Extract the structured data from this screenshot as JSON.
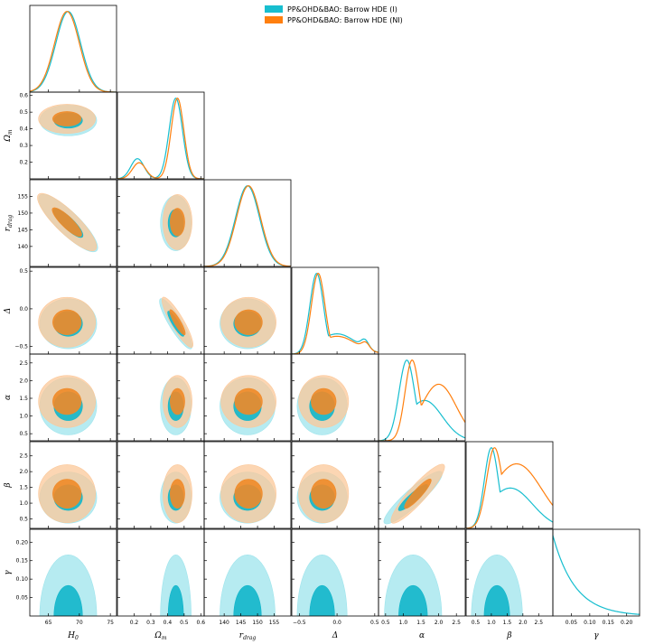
{
  "chart_data": {
    "type": "corner",
    "title": "",
    "parameters": [
      {
        "key": "H0",
        "label": "H",
        "sub": "0",
        "range": [
          62,
          76
        ],
        "ticks": [
          65,
          70,
          75
        ],
        "tick_labels": [
          "65",
          "70",
          "75"
        ]
      },
      {
        "key": "Om",
        "label": "Ω",
        "sub": "m",
        "range": [
          0.1,
          0.62
        ],
        "ticks": [
          0.2,
          0.3,
          0.4,
          0.5,
          0.6
        ],
        "tick_labels": [
          "0.2",
          "0.3",
          "0.4",
          "0.5",
          "0.6"
        ]
      },
      {
        "key": "rdrag",
        "label": "r",
        "sub": "drag",
        "range": [
          134,
          160
        ],
        "ticks": [
          140,
          145,
          150,
          155
        ],
        "tick_labels": [
          "140",
          "145",
          "150",
          "155"
        ]
      },
      {
        "key": "Delta",
        "label": "Δ",
        "sub": "",
        "range": [
          -0.6,
          0.55
        ],
        "ticks": [
          -0.5,
          0.0,
          0.5
        ],
        "tick_labels": [
          "−0.5",
          "0.0",
          "0.5"
        ]
      },
      {
        "key": "alpha",
        "label": "α",
        "sub": "",
        "range": [
          0.3,
          2.75
        ],
        "ticks": [
          0.5,
          1.0,
          1.5,
          2.0,
          2.5
        ],
        "tick_labels": [
          "0.5",
          "1.0",
          "1.5",
          "2.0",
          "2.5"
        ]
      },
      {
        "key": "beta",
        "label": "β",
        "sub": "",
        "range": [
          0.2,
          2.95
        ],
        "ticks": [
          0.5,
          1.0,
          1.5,
          2.0,
          2.5
        ],
        "tick_labels": [
          "0.5",
          "1.0",
          "1.5",
          "2.0",
          "2.5"
        ]
      },
      {
        "key": "gamma",
        "label": "γ",
        "sub": "",
        "range": [
          0.0,
          0.235
        ],
        "ticks": [
          0.05,
          0.1,
          0.15,
          0.2
        ],
        "tick_labels": [
          "0.05",
          "0.10",
          "0.15",
          "0.20"
        ]
      }
    ],
    "y_axis_ticks": {
      "Om": {
        "ticks": [
          0.2,
          0.3,
          0.4,
          0.5,
          0.6
        ],
        "tick_labels": [
          "0.2",
          "0.3",
          "0.4",
          "0.5",
          "0.6"
        ]
      },
      "rdrag": {
        "ticks": [
          140,
          145,
          150,
          155
        ],
        "tick_labels": [
          "140",
          "145",
          "150",
          "155"
        ]
      },
      "Delta": {
        "ticks": [
          -0.5,
          0.0,
          0.5
        ],
        "tick_labels": [
          "−0.5",
          "0.0",
          "0.5"
        ]
      },
      "alpha": {
        "ticks": [
          0.5,
          1.0,
          1.5,
          2.0,
          2.5
        ],
        "tick_labels": [
          "0.5",
          "1.0",
          "1.5",
          "2.0",
          "2.5"
        ]
      },
      "beta": {
        "ticks": [
          0.5,
          1.0,
          1.5,
          2.0,
          2.5
        ],
        "tick_labels": [
          "0.5",
          "1.0",
          "1.5",
          "2.0",
          "2.5"
        ]
      },
      "gamma": {
        "ticks": [
          0.05,
          0.1,
          0.15,
          0.2
        ],
        "tick_labels": [
          "0.05",
          "0.10",
          "0.15",
          "0.20"
        ]
      }
    },
    "legend_position": "top-center",
    "series": [
      {
        "name": "PP&OHD&BAO: Barrow HDE (I)",
        "color": "#17becf",
        "color_inner": "#12b6ca",
        "color_outer": "#9ee4ec",
        "params": [
          "H0",
          "Om",
          "rdrag",
          "Delta",
          "alpha",
          "beta",
          "gamma"
        ],
        "marginals": {
          "H0": {
            "mean": 68.2,
            "sigma": 2.0
          },
          "Om": {
            "mean": 0.45,
            "sigma": 0.04,
            "bump": [
              0.22,
              0.04,
              0.25
            ]
          },
          "rdrag": {
            "mean": 147.0,
            "sigma": 3.6
          },
          "Delta": {
            "mean": -0.27,
            "sigma": 0.09,
            "tail": [
              0.0,
              0.25,
              0.25
            ],
            "bump": [
              0.37,
              0.05,
              0.1
            ]
          },
          "alpha": {
            "mean": 1.1,
            "sigma": 0.22,
            "tail": [
              1.6,
              0.5,
              0.5
            ]
          },
          "beta": {
            "mean": 1.0,
            "sigma": 0.22,
            "tail": [
              1.6,
              0.7,
              0.5
            ]
          },
          "gamma": {
            "decay_scale": 0.06
          }
        }
      },
      {
        "name": "PP&OHD&BAO: Barrow HDE (NI)",
        "color": "#ff7f0e",
        "color_inner": "#f08a28",
        "color_outer": "#fbc89a",
        "params": [
          "H0",
          "Om",
          "rdrag",
          "Delta",
          "alpha",
          "beta"
        ],
        "marginals": {
          "H0": {
            "mean": 68.0,
            "sigma": 2.0
          },
          "Om": {
            "mean": 0.46,
            "sigma": 0.038,
            "bump": [
              0.23,
              0.04,
              0.2
            ]
          },
          "rdrag": {
            "mean": 147.3,
            "sigma": 3.6
          },
          "Delta": {
            "mean": -0.25,
            "sigma": 0.09,
            "tail": [
              0.0,
              0.25,
              0.22
            ],
            "bump": [
              0.38,
              0.05,
              0.08
            ]
          },
          "alpha": {
            "mean": 1.25,
            "sigma": 0.2,
            "tail": [
              2.0,
              0.5,
              0.7
            ]
          },
          "beta": {
            "mean": 1.1,
            "sigma": 0.25,
            "tail": [
              1.8,
              0.8,
              0.8
            ]
          }
        }
      }
    ]
  }
}
